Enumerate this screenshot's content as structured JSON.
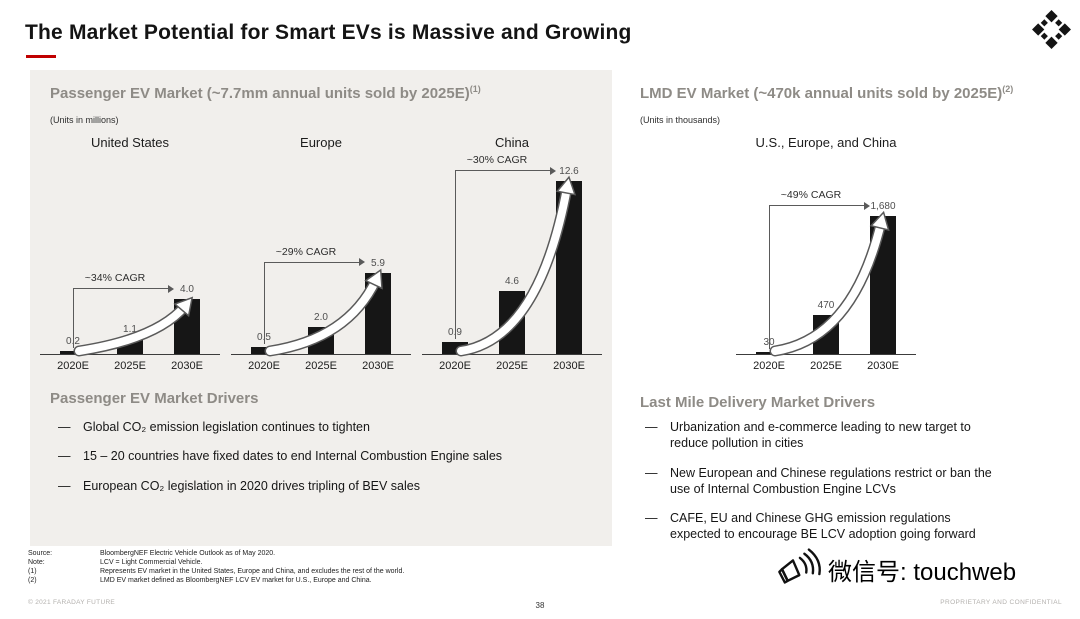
{
  "slide": {
    "title": "The Market Potential for Smart EVs is Massive and Growing",
    "page_number": "38",
    "copyright": "© 2021 FARADAY FUTURE",
    "confidential": "PROPRIETARY AND CONFIDENTIAL",
    "watermark": "微信号: touchweb"
  },
  "left_panel": {
    "title": "Passenger EV Market (~7.7mm annual units sold by 2025E)",
    "title_superscript": "(1)",
    "units_note": "(Units in millions)",
    "drivers": {
      "heading": "Passenger EV Market Drivers",
      "items": [
        "Global CO₂ emission legislation continues to tighten",
        "15 – 20 countries have fixed dates to end Internal Combustion Engine sales",
        "European CO₂ legislation in 2020 drives tripling of BEV sales"
      ]
    }
  },
  "right_panel": {
    "title": "LMD EV Market (~470k annual units sold by 2025E)",
    "title_superscript": "(2)",
    "units_note": "(Units in thousands)",
    "drivers": {
      "heading": "Last Mile Delivery Market Drivers",
      "items": [
        "Urbanization and e-commerce leading to new target to reduce pollution in cities",
        "New European and Chinese regulations restrict or ban the use of Internal Combustion Engine LCVs",
        "CAFE, EU and Chinese GHG emission regulations expected to encourage BE LCV adoption going forward"
      ]
    }
  },
  "footnotes": [
    {
      "label": "Source:",
      "text": "BloombergNEF Electric Vehicle Outlook as of May 2020."
    },
    {
      "label": "Note:",
      "text": "LCV = Light Commercial Vehicle."
    },
    {
      "label": "(1)",
      "text": "Represents EV market in the United States, Europe and China, and excludes the rest of the world."
    },
    {
      "label": "(2)",
      "text": "LMD EV market defined as BloombergNEF LCV EV market for U.S., Europe and China."
    }
  ],
  "chart_data": [
    {
      "type": "bar",
      "title": "Passenger EV Market (~7.7mm annual units sold by 2025E)",
      "units": "millions of annual units",
      "categories": [
        "2020E",
        "2025E",
        "2030E"
      ],
      "ylim": [
        0,
        13
      ],
      "legend_position": "none",
      "grid": false,
      "groups": [
        {
          "name": "United States",
          "cagr_label": "~34% CAGR",
          "values": [
            0.2,
            1.1,
            4.0
          ],
          "value_labels": [
            "0.2",
            "1.1",
            "4.0"
          ]
        },
        {
          "name": "Europe",
          "cagr_label": "~29% CAGR",
          "values": [
            0.5,
            2.0,
            5.9
          ],
          "value_labels": [
            "0.5",
            "2.0",
            "5.9"
          ]
        },
        {
          "name": "China",
          "cagr_label": "~30% CAGR",
          "values": [
            0.9,
            4.6,
            12.6
          ],
          "value_labels": [
            "0.9",
            "4.6",
            "12.6"
          ]
        }
      ]
    },
    {
      "type": "bar",
      "title": "LMD EV Market (~470k annual units sold by 2025E)",
      "units": "thousands of annual units",
      "categories": [
        "2020E",
        "2025E",
        "2030E"
      ],
      "ylim": [
        0,
        1750
      ],
      "legend_position": "none",
      "grid": false,
      "groups": [
        {
          "name": "U.S., Europe, and China",
          "cagr_label": "~49% CAGR",
          "values": [
            30,
            470,
            1680
          ],
          "value_labels": [
            "30",
            "470",
            "1,680"
          ]
        }
      ]
    }
  ],
  "colors": {
    "bar": "#161616",
    "panel_heading": "#8e8b86",
    "accent_red": "#c00000",
    "panel_bg": "#f1efec"
  }
}
